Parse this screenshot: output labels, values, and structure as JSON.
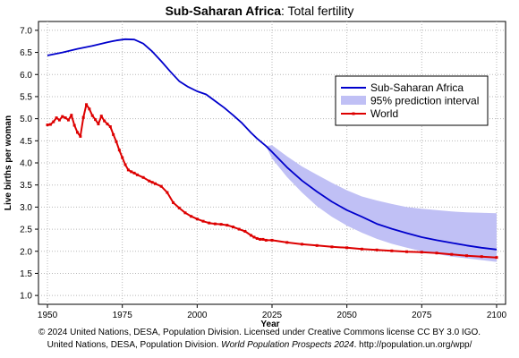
{
  "chart_data": {
    "type": "line",
    "title_bold": "Sub-Saharan Africa",
    "title_rest": ": Total fertility",
    "xlabel": "Year",
    "ylabel": "Live births per woman",
    "xlim": [
      1947,
      2103
    ],
    "ylim": [
      0.8,
      7.2
    ],
    "x_ticks": [
      1950,
      1975,
      2000,
      2025,
      2050,
      2075,
      2100
    ],
    "y_ticks": [
      1.0,
      1.5,
      2.0,
      2.5,
      3.0,
      3.5,
      4.0,
      4.5,
      5.0,
      5.5,
      6.0,
      6.5,
      7.0
    ],
    "y_tick_labels": [
      "1.0",
      "1.5",
      "2.0",
      "2.5",
      "3.0",
      "3.5",
      "4.0",
      "4.5",
      "5.0",
      "5.5",
      "6.0",
      "6.5",
      "7.0"
    ],
    "grid": true,
    "legend_position": "right",
    "series": [
      {
        "name": "Sub-Saharan Africa",
        "color": "#0000cc",
        "x": [
          1950,
          1955,
          1960,
          1965,
          1970,
          1973,
          1976,
          1979,
          1982,
          1985,
          1988,
          1991,
          1994,
          1997,
          2000,
          2003,
          2006,
          2009,
          2012,
          2015,
          2018,
          2020,
          2023,
          2025,
          2030,
          2035,
          2040,
          2045,
          2050,
          2055,
          2060,
          2065,
          2070,
          2075,
          2080,
          2085,
          2090,
          2095,
          2100
        ],
        "values": [
          6.43,
          6.5,
          6.58,
          6.65,
          6.73,
          6.77,
          6.8,
          6.79,
          6.7,
          6.52,
          6.3,
          6.07,
          5.85,
          5.72,
          5.62,
          5.55,
          5.4,
          5.25,
          5.08,
          4.9,
          4.68,
          4.55,
          4.38,
          4.25,
          3.9,
          3.6,
          3.35,
          3.12,
          2.93,
          2.78,
          2.62,
          2.51,
          2.41,
          2.32,
          2.25,
          2.19,
          2.13,
          2.08,
          2.04
        ]
      },
      {
        "name": "95% prediction interval",
        "color": "#c0c0f5",
        "x": [
          2023,
          2025,
          2030,
          2035,
          2040,
          2045,
          2050,
          2055,
          2060,
          2065,
          2070,
          2075,
          2080,
          2085,
          2090,
          2095,
          2100
        ],
        "upper": [
          4.38,
          4.4,
          4.15,
          3.92,
          3.73,
          3.55,
          3.38,
          3.24,
          3.15,
          3.07,
          3.0,
          2.96,
          2.93,
          2.9,
          2.88,
          2.87,
          2.86
        ],
        "lower": [
          4.38,
          4.1,
          3.68,
          3.33,
          3.02,
          2.78,
          2.58,
          2.42,
          2.28,
          2.17,
          2.08,
          2.0,
          1.94,
          1.88,
          1.84,
          1.8,
          1.76
        ]
      },
      {
        "name": "World",
        "color": "#dd0000",
        "x": [
          1950,
          1951,
          1952,
          1953,
          1954,
          1955,
          1956,
          1957,
          1958,
          1959,
          1960,
          1961,
          1962,
          1963,
          1964,
          1965,
          1966,
          1967,
          1968,
          1969,
          1970,
          1971,
          1972,
          1973,
          1974,
          1975,
          1976,
          1977,
          1978,
          1979,
          1980,
          1982,
          1984,
          1985,
          1986,
          1988,
          1990,
          1992,
          1994,
          1996,
          1998,
          2000,
          2002,
          2004,
          2006,
          2008,
          2010,
          2012,
          2014,
          2016,
          2018,
          2019,
          2020,
          2021,
          2022,
          2023,
          2025,
          2030,
          2035,
          2040,
          2045,
          2050,
          2055,
          2060,
          2065,
          2070,
          2075,
          2080,
          2085,
          2090,
          2095,
          2100
        ],
        "values": [
          4.86,
          4.87,
          4.93,
          5.02,
          4.97,
          5.05,
          5.02,
          4.97,
          5.08,
          4.85,
          4.69,
          4.6,
          5.03,
          5.32,
          5.22,
          5.07,
          4.98,
          4.88,
          5.06,
          4.95,
          4.88,
          4.82,
          4.64,
          4.48,
          4.29,
          4.12,
          3.96,
          3.84,
          3.8,
          3.77,
          3.73,
          3.67,
          3.59,
          3.56,
          3.53,
          3.47,
          3.33,
          3.1,
          2.98,
          2.87,
          2.79,
          2.73,
          2.68,
          2.64,
          2.62,
          2.61,
          2.59,
          2.55,
          2.5,
          2.45,
          2.36,
          2.32,
          2.29,
          2.27,
          2.27,
          2.25,
          2.25,
          2.2,
          2.16,
          2.13,
          2.1,
          2.08,
          2.05,
          2.03,
          2.01,
          1.99,
          1.98,
          1.96,
          1.93,
          1.9,
          1.88,
          1.86
        ]
      }
    ]
  },
  "credit": {
    "line1": "© 2024 United Nations, DESA, Population Division. Licensed under Creative Commons license CC BY 3.0 IGO.",
    "line2_a": "United Nations, DESA, Population Division. ",
    "line2_italic": "World Population Prospects 2024",
    "line2_b": ". http://population.un.org/wpp/"
  }
}
